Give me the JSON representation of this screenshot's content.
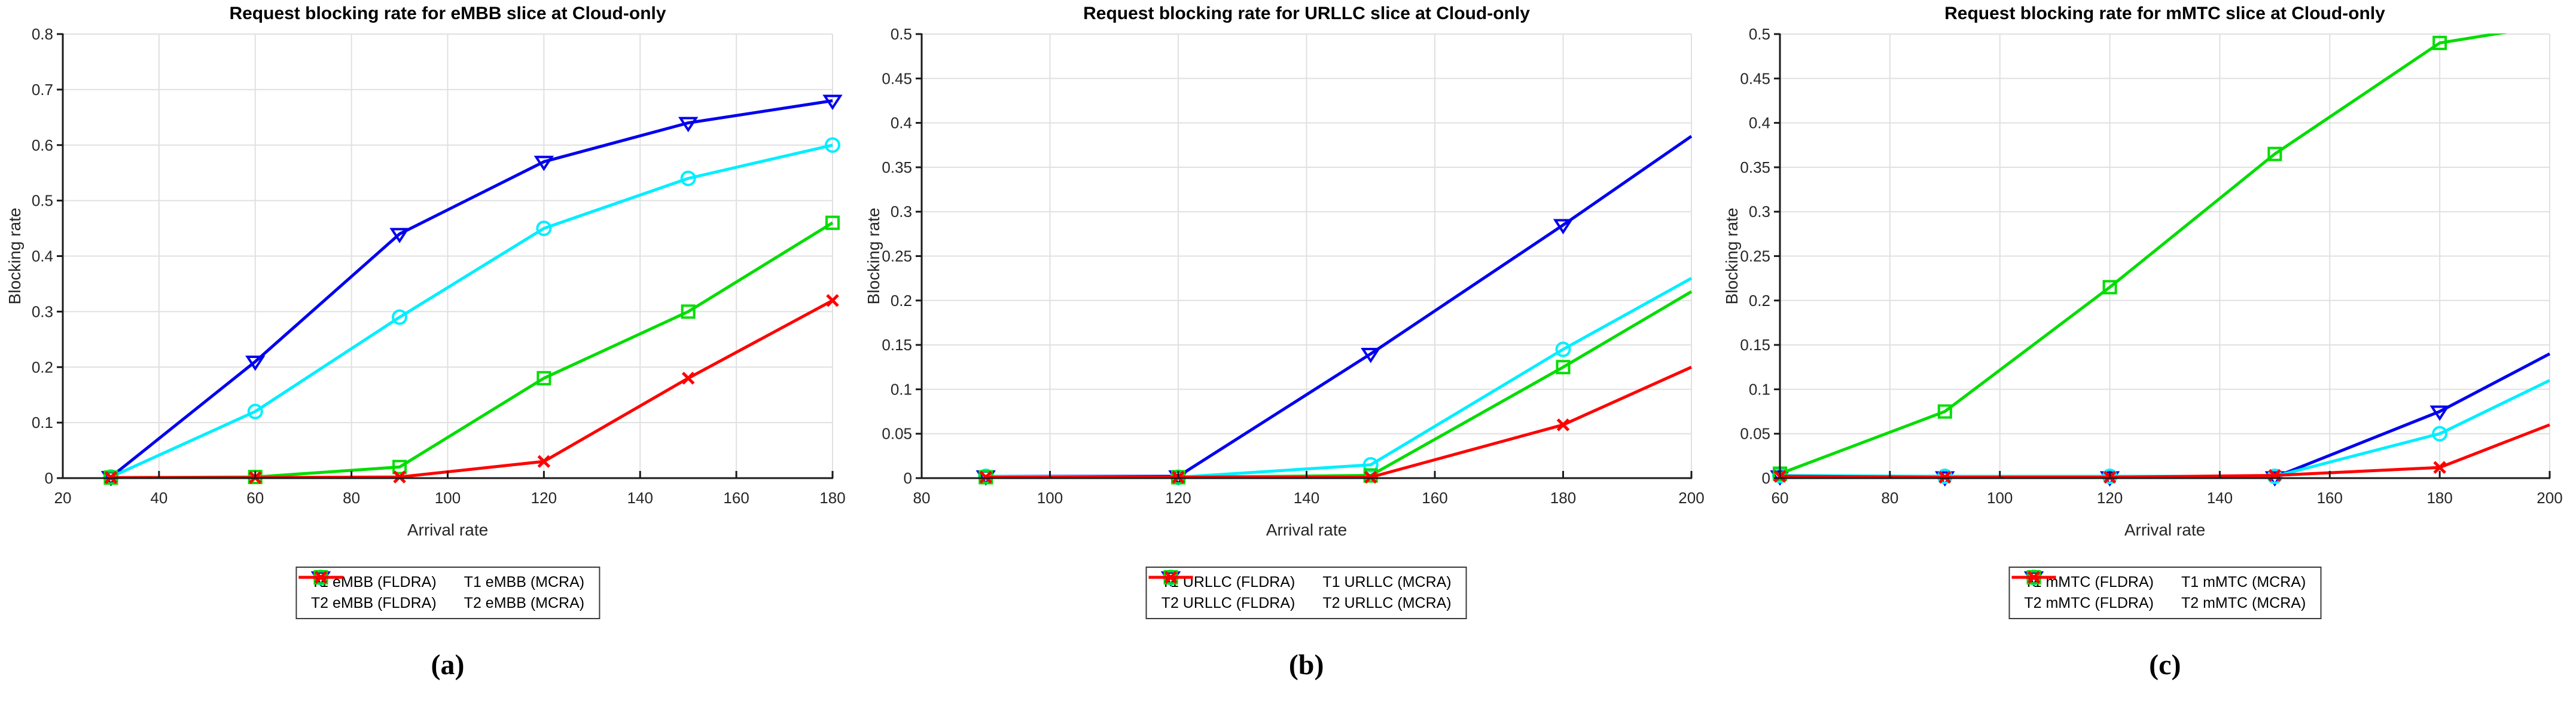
{
  "figure": {
    "xlabel": "Arrival rate",
    "ylabel": "Blocking rate"
  },
  "chart_data": [
    {
      "type": "line",
      "slice": "eMBB",
      "title": "Request blocking rate for eMBB slice at Cloud-only",
      "xlabel": "Arrival rate",
      "ylabel": "Blocking rate",
      "caption": "(a)",
      "xlim": [
        20,
        180
      ],
      "ylim": [
        0,
        0.8
      ],
      "grid": true,
      "legend_position": "below",
      "xticks": [
        20,
        40,
        60,
        80,
        100,
        120,
        140,
        160,
        180
      ],
      "xtick_labels": [
        "20",
        "40",
        "60",
        "80",
        "100",
        "120",
        "140",
        "160",
        "180"
      ],
      "yticks": [
        0,
        0.1,
        0.2,
        0.3,
        0.4,
        0.5,
        0.6,
        0.7,
        0.8
      ],
      "ytick_labels": [
        "0",
        "0.1",
        "0.2",
        "0.3",
        "0.4",
        "0.5",
        "0.6",
        "0.7",
        "0.8"
      ],
      "series": [
        {
          "name": "T1 eMBB (FLDRA)",
          "color": "#0000EE",
          "marker": "triangle-down",
          "x": [
            30,
            60,
            90,
            120,
            150,
            180
          ],
          "y": [
            0.002,
            0.21,
            0.44,
            0.57,
            0.64,
            0.68
          ]
        },
        {
          "name": "T1 eMBB (MCRA)",
          "color": "#00EEFF",
          "marker": "circle",
          "x": [
            30,
            60,
            90,
            120,
            150,
            180
          ],
          "y": [
            0.002,
            0.12,
            0.29,
            0.45,
            0.54,
            0.6
          ]
        },
        {
          "name": "T2 eMBB (FLDRA)",
          "color": "#00DD00",
          "marker": "square",
          "x": [
            30,
            60,
            90,
            120,
            150,
            180
          ],
          "y": [
            0.001,
            0.002,
            0.02,
            0.18,
            0.3,
            0.46
          ]
        },
        {
          "name": "T2 eMBB (MCRA)",
          "color": "#FF0000",
          "marker": "x",
          "x": [
            30,
            60,
            90,
            120,
            150,
            180
          ],
          "y": [
            0.001,
            0.001,
            0.002,
            0.03,
            0.18,
            0.32
          ]
        }
      ]
    },
    {
      "type": "line",
      "slice": "URLLC",
      "title": "Request blocking rate for URLLC slice at Cloud-only",
      "xlabel": "Arrival rate",
      "ylabel": "Blocking rate",
      "caption": "(b)",
      "xlim": [
        80,
        200
      ],
      "ylim": [
        0,
        0.5
      ],
      "grid": true,
      "legend_position": "below",
      "xticks": [
        80,
        100,
        120,
        140,
        160,
        180,
        200
      ],
      "xtick_labels": [
        "80",
        "100",
        "120",
        "140",
        "160",
        "180",
        "200"
      ],
      "yticks": [
        0,
        0.05,
        0.1,
        0.15,
        0.2,
        0.25,
        0.3,
        0.35,
        0.4,
        0.45,
        0.5
      ],
      "ytick_labels": [
        "0",
        "0.05",
        "0.1",
        "0.15",
        "0.2",
        "0.25",
        "0.3",
        "0.35",
        "0.4",
        "0.45",
        "0.5"
      ],
      "series": [
        {
          "name": "T1 URLLC (FLDRA)",
          "color": "#0000EE",
          "marker": "triangle-down",
          "x": [
            90,
            120,
            150,
            180
          ],
          "y": [
            0.002,
            0.002,
            0.14,
            0.285
          ],
          "line_end": {
            "x": 200,
            "y": 0.385
          }
        },
        {
          "name": "T1 URLLC (MCRA)",
          "color": "#00EEFF",
          "marker": "circle",
          "x": [
            90,
            120,
            150,
            180
          ],
          "y": [
            0.002,
            0.001,
            0.015,
            0.145
          ],
          "line_end": {
            "x": 200,
            "y": 0.225
          }
        },
        {
          "name": "T2 URLLC (FLDRA)",
          "color": "#00DD00",
          "marker": "square",
          "x": [
            90,
            120,
            150,
            180
          ],
          "y": [
            0.001,
            0.001,
            0.003,
            0.125
          ],
          "line_end": {
            "x": 200,
            "y": 0.21
          }
        },
        {
          "name": "T2 URLLC (MCRA)",
          "color": "#FF0000",
          "marker": "x",
          "x": [
            90,
            120,
            150,
            180
          ],
          "y": [
            0.001,
            0.001,
            0.001,
            0.06
          ],
          "line_end": {
            "x": 200,
            "y": 0.125
          }
        }
      ]
    },
    {
      "type": "line",
      "slice": "mMTC",
      "title": "Request blocking rate for mMTC slice at Cloud-only",
      "xlabel": "Arrival rate",
      "ylabel": "Blocking rate",
      "caption": "(c)",
      "xlim": [
        60,
        200
      ],
      "ylim": [
        0,
        0.5
      ],
      "grid": true,
      "legend_position": "below",
      "xticks": [
        60,
        80,
        100,
        120,
        140,
        160,
        180,
        200
      ],
      "xtick_labels": [
        "60",
        "80",
        "100",
        "120",
        "140",
        "160",
        "180",
        "200"
      ],
      "yticks": [
        0,
        0.05,
        0.1,
        0.15,
        0.2,
        0.25,
        0.3,
        0.35,
        0.4,
        0.45,
        0.5
      ],
      "ytick_labels": [
        "0",
        "0.05",
        "0.1",
        "0.15",
        "0.2",
        "0.25",
        "0.3",
        "0.35",
        "0.4",
        "0.45",
        "0.5"
      ],
      "series": [
        {
          "name": "T1 mMTC (FLDRA)",
          "color": "#0000EE",
          "marker": "triangle-down",
          "x": [
            60,
            90,
            120,
            150,
            180
          ],
          "y": [
            0.002,
            0.001,
            0.001,
            0.001,
            0.075
          ],
          "line_end": {
            "x": 200,
            "y": 0.14
          }
        },
        {
          "name": "T1 mMTC (MCRA)",
          "color": "#00EEFF",
          "marker": "circle",
          "x": [
            60,
            90,
            120,
            150,
            180
          ],
          "y": [
            0.003,
            0.002,
            0.002,
            0.002,
            0.05
          ],
          "line_end": {
            "x": 200,
            "y": 0.11
          }
        },
        {
          "name": "T2 mMTC (FLDRA)",
          "color": "#00DD00",
          "marker": "square",
          "x": [
            60,
            90,
            120,
            150,
            180
          ],
          "y": [
            0.005,
            0.075,
            0.215,
            0.365,
            0.49
          ],
          "line_end": {
            "x": 200,
            "y": 0.51
          }
        },
        {
          "name": "T2 mMTC (MCRA)",
          "color": "#FF0000",
          "marker": "x",
          "x": [
            60,
            90,
            120,
            150,
            180
          ],
          "y": [
            0.002,
            0.001,
            0.001,
            0.003,
            0.012
          ],
          "line_end": {
            "x": 200,
            "y": 0.06
          }
        }
      ]
    }
  ]
}
